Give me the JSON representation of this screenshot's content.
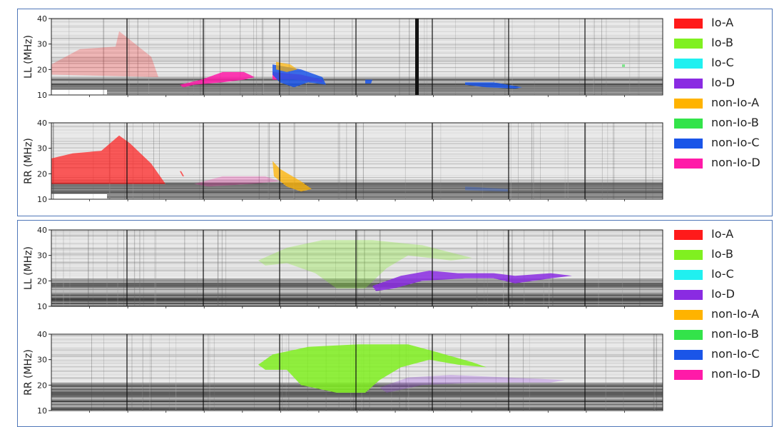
{
  "chart_data": [
    {
      "type": "heatmap",
      "group": "top",
      "legend": [
        "Io-A",
        "Io-B",
        "Io-C",
        "Io-D",
        "non-Io-A",
        "non-Io-B",
        "non-Io-C",
        "non-Io-D"
      ],
      "panels": [
        {
          "ylabel": "LL (MHz)",
          "ylim": [
            10,
            40
          ],
          "yticks": [
            10,
            20,
            30,
            40
          ],
          "regions": [
            {
              "class": "Io-A",
              "opacity": 0.25,
              "poly": [
                [
                  0,
                  22
                ],
                [
                  40,
                  28
                ],
                [
                  90,
                  29
                ],
                [
                  95,
                  35
                ],
                [
                  140,
                  25
                ],
                [
                  150,
                  17
                ],
                [
                  0,
                  18
                ]
              ]
            },
            {
              "class": "non-Io-D",
              "opacity": 0.85,
              "poly": [
                [
                  180,
                  14
                ],
                [
                  210,
                  16
                ],
                [
                  240,
                  19
                ],
                [
                  270,
                  19
                ],
                [
                  285,
                  17
                ],
                [
                  270,
                  16
                ],
                [
                  240,
                  15
                ],
                [
                  200,
                  14
                ],
                [
                  185,
                  13
                ]
              ]
            },
            {
              "class": "non-Io-D",
              "opacity": 0.85,
              "poly": [
                [
                  310,
                  19
                ],
                [
                  350,
                  18
                ],
                [
                  380,
                  16
                ],
                [
                  380,
                  15
                ],
                [
                  340,
                  16
                ],
                [
                  310,
                  16
                ]
              ]
            },
            {
              "class": "non-Io-C",
              "opacity": 0.85,
              "poly": [
                [
                  310,
                  22
                ],
                [
                  330,
                  21
                ],
                [
                  350,
                  20
                ],
                [
                  380,
                  17
                ],
                [
                  385,
                  14
                ],
                [
                  360,
                  15
                ],
                [
                  340,
                  13
                ],
                [
                  320,
                  15
                ],
                [
                  310,
                  18
                ]
              ]
            },
            {
              "class": "non-Io-A",
              "opacity": 0.7,
              "poly": [
                [
                  315,
                  23
                ],
                [
                  335,
                  22
                ],
                [
                  345,
                  20
                ],
                [
                  330,
                  19
                ],
                [
                  315,
                  20
                ]
              ]
            },
            {
              "class": "non-Io-C",
              "opacity": 0.85,
              "poly": [
                [
                  440,
                  16
                ],
                [
                  450,
                  16
                ],
                [
                  448,
                  14.5
                ],
                [
                  440,
                  14.5
                ]
              ]
            },
            {
              "class": "non-Io-C",
              "opacity": 0.85,
              "poly": [
                [
                  580,
                  15
                ],
                [
                  620,
                  15
                ],
                [
                  660,
                  13
                ],
                [
                  650,
                  12.5
                ],
                [
                  610,
                  13
                ],
                [
                  580,
                  14
                ]
              ]
            },
            {
              "class": "non-Io-B",
              "opacity": 0.6,
              "poly": [
                [
                  800,
                  22
                ],
                [
                  804,
                  22
                ],
                [
                  804,
                  21
                ],
                [
                  800,
                  21
                ]
              ]
            }
          ]
        },
        {
          "ylabel": "RR (MHz)",
          "ylim": [
            10,
            40
          ],
          "yticks": [
            10,
            20,
            30,
            40
          ],
          "regions": [
            {
              "class": "Io-A",
              "opacity": 0.7,
              "poly": [
                [
                  0,
                  26
                ],
                [
                  30,
                  28
                ],
                [
                  70,
                  29
                ],
                [
                  95,
                  35
                ],
                [
                  110,
                  32
                ],
                [
                  140,
                  24
                ],
                [
                  160,
                  16
                ],
                [
                  0,
                  16
                ]
              ]
            },
            {
              "class": "Io-A",
              "opacity": 0.7,
              "poly": [
                [
                  180,
                  21
                ],
                [
                  184,
                  19
                ],
                [
                  186,
                  19
                ],
                [
                  182,
                  21
                ]
              ]
            },
            {
              "class": "non-Io-D",
              "opacity": 0.25,
              "poly": [
                [
                  200,
                  16
                ],
                [
                  240,
                  19
                ],
                [
                  300,
                  19
                ],
                [
                  320,
                  17
                ],
                [
                  280,
                  16
                ],
                [
                  220,
                  15
                ]
              ]
            },
            {
              "class": "non-Io-A",
              "opacity": 0.75,
              "poly": [
                [
                  310,
                  25
                ],
                [
                  320,
                  22
                ],
                [
                  350,
                  17
                ],
                [
                  365,
                  14
                ],
                [
                  350,
                  13
                ],
                [
                  330,
                  15
                ],
                [
                  312,
                  19
                ]
              ]
            },
            {
              "class": "non-Io-C",
              "opacity": 0.3,
              "poly": [
                [
                  580,
                  15
                ],
                [
                  640,
                  14
                ],
                [
                  640,
                  13
                ],
                [
                  580,
                  13.5
                ]
              ]
            }
          ]
        }
      ]
    },
    {
      "type": "heatmap",
      "group": "bottom",
      "legend": [
        "Io-A",
        "Io-B",
        "Io-C",
        "Io-D",
        "non-Io-A",
        "non-Io-B",
        "non-Io-C",
        "non-Io-D"
      ],
      "panels": [
        {
          "ylabel": "LL (MHz)",
          "ylim": [
            10,
            40
          ],
          "yticks": [
            10,
            20,
            30,
            40
          ],
          "regions": [
            {
              "class": "Io-B",
              "opacity": 0.3,
              "poly": [
                [
                  290,
                  28
                ],
                [
                  330,
                  33
                ],
                [
                  380,
                  36
                ],
                [
                  450,
                  36
                ],
                [
                  520,
                  34
                ],
                [
                  590,
                  29
                ],
                [
                  560,
                  28
                ],
                [
                  500,
                  30
                ],
                [
                  470,
                  25
                ],
                [
                  440,
                  17
                ],
                [
                  400,
                  17
                ],
                [
                  370,
                  23
                ],
                [
                  330,
                  27
                ],
                [
                  300,
                  26
                ]
              ]
            },
            {
              "class": "Io-D",
              "opacity": 0.85,
              "poly": [
                [
                  450,
                  18
                ],
                [
                  490,
                  22
                ],
                [
                  530,
                  24
                ],
                [
                  570,
                  23
                ],
                [
                  620,
                  23
                ],
                [
                  650,
                  22
                ],
                [
                  700,
                  23
                ],
                [
                  730,
                  22
                ],
                [
                  700,
                  21
                ],
                [
                  650,
                  19
                ],
                [
                  620,
                  21
                ],
                [
                  580,
                  21
                ],
                [
                  520,
                  20
                ],
                [
                  480,
                  17
                ],
                [
                  455,
                  16
                ]
              ]
            }
          ]
        },
        {
          "ylabel": "RR (MHz)",
          "ylim": [
            10,
            40
          ],
          "yticks": [
            10,
            20,
            30,
            40
          ],
          "regions": [
            {
              "class": "Io-B",
              "opacity": 0.85,
              "poly": [
                [
                  290,
                  28
                ],
                [
                  310,
                  32
                ],
                [
                  360,
                  35
                ],
                [
                  430,
                  36
                ],
                [
                  500,
                  36
                ],
                [
                  540,
                  33
                ],
                [
                  590,
                  29
                ],
                [
                  610,
                  27
                ],
                [
                  570,
                  28
                ],
                [
                  530,
                  30
                ],
                [
                  490,
                  27
                ],
                [
                  460,
                  22
                ],
                [
                  440,
                  17
                ],
                [
                  400,
                  17
                ],
                [
                  350,
                  20
                ],
                [
                  330,
                  26
                ],
                [
                  300,
                  26
                ]
              ]
            },
            {
              "class": "Io-D",
              "opacity": 0.25,
              "poly": [
                [
                  460,
                  19
                ],
                [
                  500,
                  23
                ],
                [
                  560,
                  24
                ],
                [
                  640,
                  23
                ],
                [
                  720,
                  22
                ],
                [
                  700,
                  21
                ],
                [
                  600,
                  21
                ],
                [
                  520,
                  20
                ],
                [
                  470,
                  17
                ]
              ]
            }
          ]
        }
      ]
    }
  ],
  "colors": {
    "Io-A": "#ff1a1a",
    "Io-B": "#80f020",
    "Io-C": "#20f0f0",
    "Io-D": "#8a2be2",
    "non-Io-A": "#ffb300",
    "non-Io-B": "#33e34a",
    "non-Io-C": "#1a55e8",
    "non-Io-D": "#ff1aa8",
    "frame": "#4f76b8"
  }
}
